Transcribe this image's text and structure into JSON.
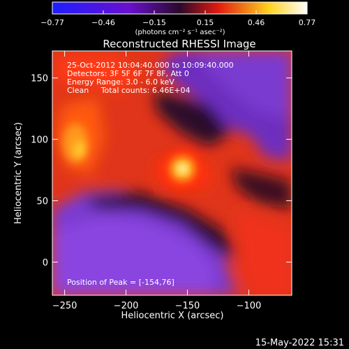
{
  "chart_data": {
    "type": "heatmap",
    "title": "Reconstructed RHESSI Image",
    "xlabel": "Heliocentric X (arcsec)",
    "ylabel": "Heliocentric Y (arcsec)",
    "xlim": [
      -260,
      -65
    ],
    "ylim": [
      -27,
      172
    ],
    "x_ticks": [
      -250,
      -200,
      -150,
      -100
    ],
    "y_ticks": [
      0,
      50,
      100,
      150
    ],
    "colorbar": {
      "range": [
        -0.77,
        0.77
      ],
      "tick_labels": [
        "-0.77",
        "-0.46",
        "-0.15",
        "0.15",
        "0.46",
        "0.77"
      ],
      "unit_label": "(photons cm⁻² s⁻¹ asec⁻²)",
      "colors": [
        "#1e1eff",
        "#6a0fd0",
        "#2a0a2a",
        "#e01a10",
        "#ffd21e",
        "#ffffff"
      ]
    },
    "annotations": [
      "25-Oct-2012 10:04:40.000 to 10:09:40.000",
      "Detectors: 3F 5F 6F 7F 8F, Att 0",
      "Energy Range: 3.0 - 6.0 keV",
      "Clean     Total counts: 6.46E+04"
    ],
    "peak": {
      "label": "Position of Peak = [-154,76]",
      "x": -154,
      "y": 76,
      "value": 0.77
    },
    "footer_date": "15-May-2022 15:31"
  }
}
